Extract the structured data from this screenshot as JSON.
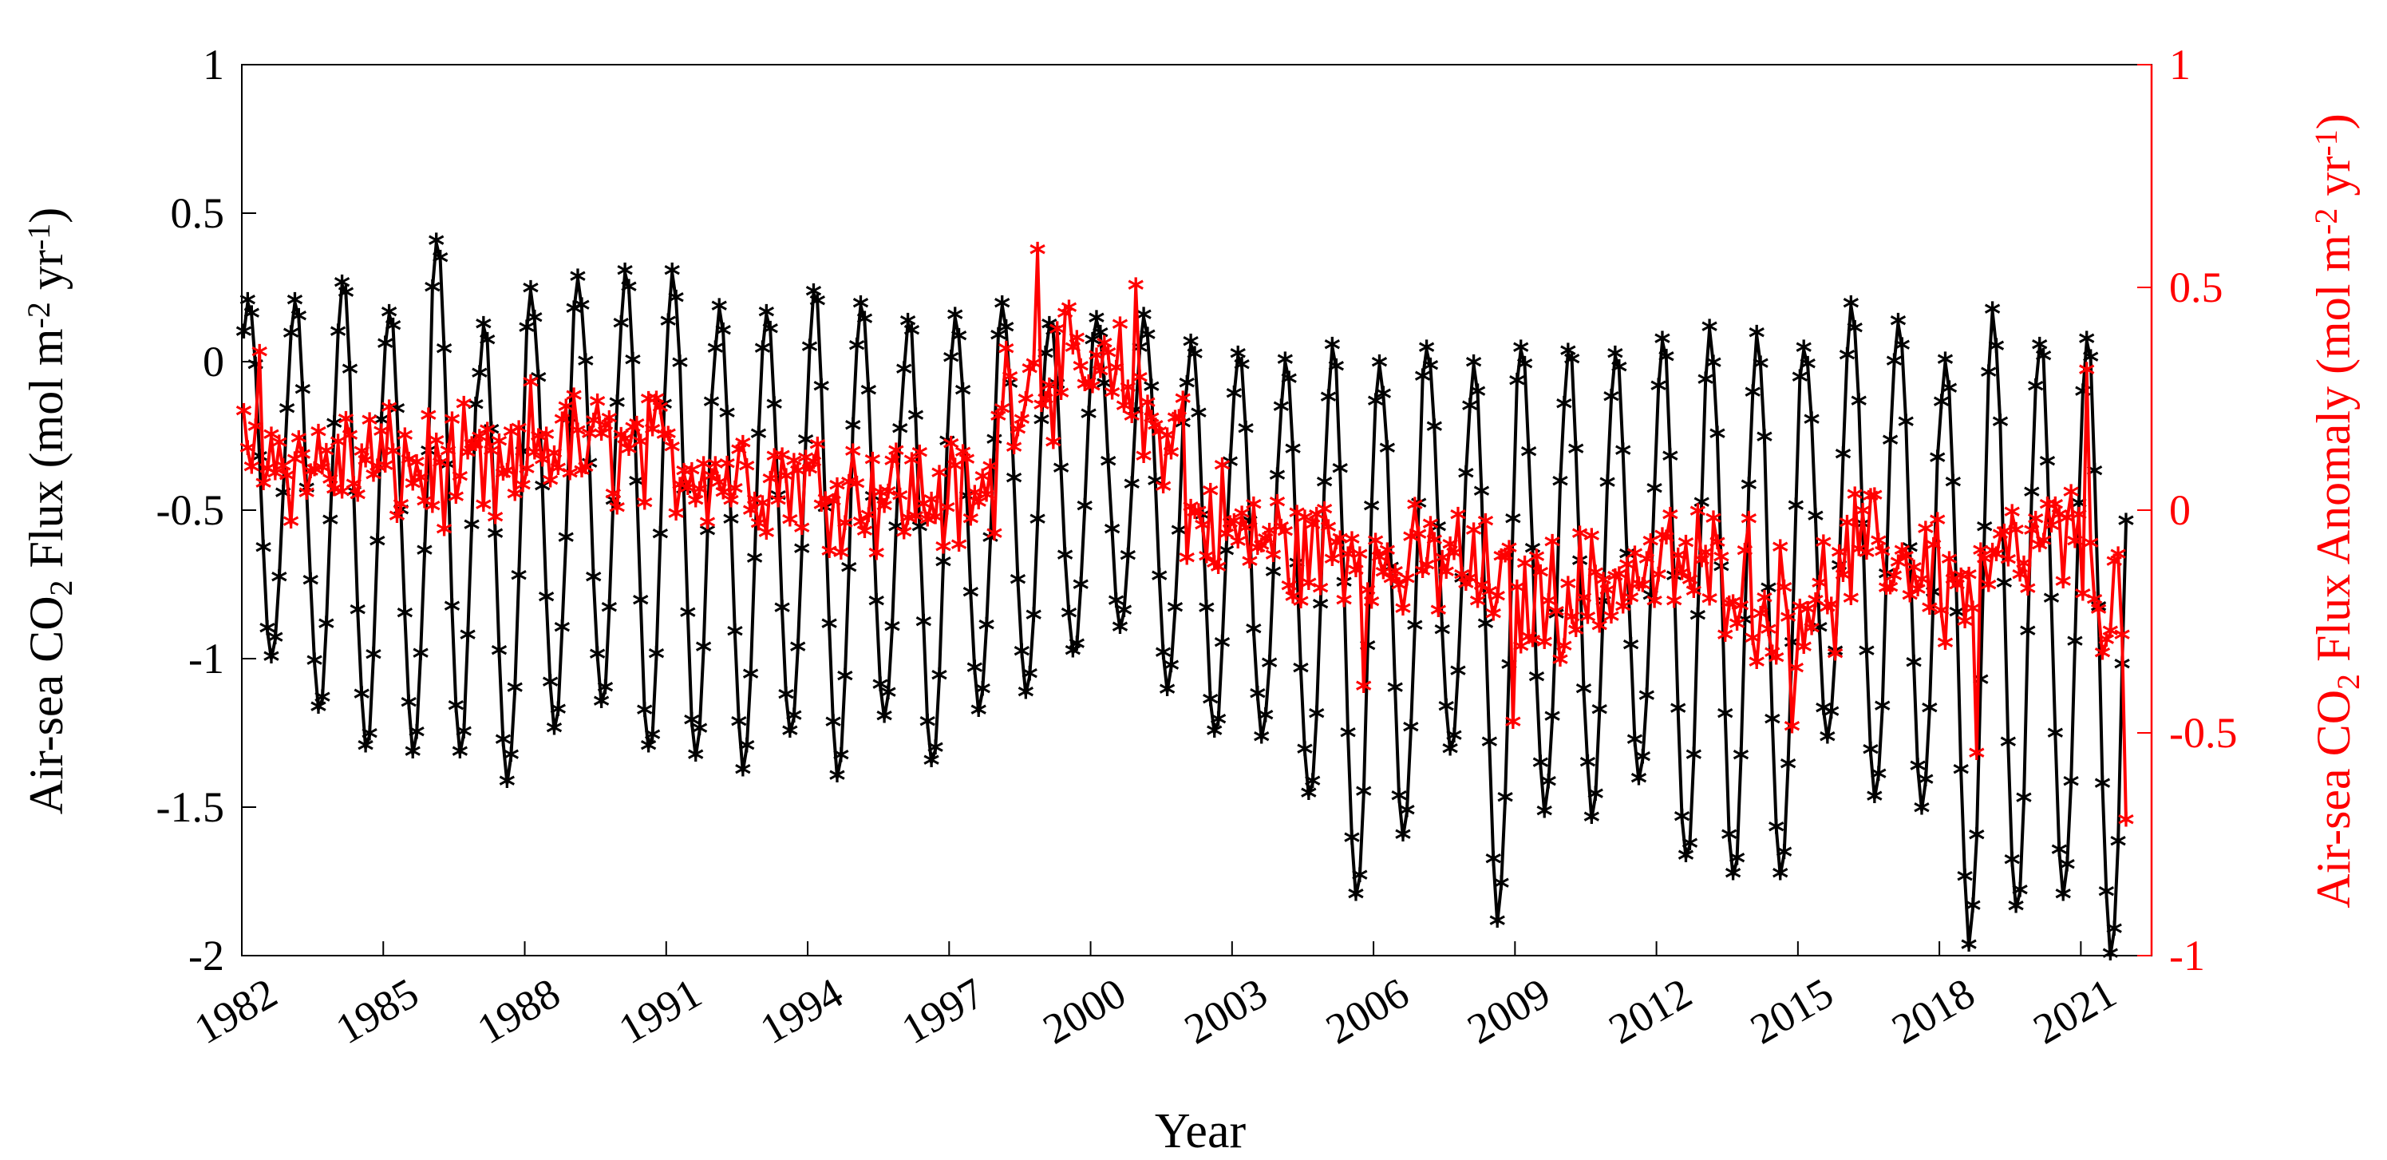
{
  "chart_data": {
    "type": "line",
    "xlabel": "Year",
    "ylabel_left": "Air-sea CO$_2$ Flux (mol m$^{-2}$ yr$^{-1}$)",
    "ylabel_right": "Air-sea CO$_2$ Flux Anomaly (mol m$^{-2}$ yr$^{-1}$)",
    "xlim": [
      1982,
      2022.5
    ],
    "ylim_left": [
      -2,
      1
    ],
    "ylim_right": [
      -1,
      1
    ],
    "xticks": [
      "1982",
      "1985",
      "1988",
      "1991",
      "1994",
      "1997",
      "2000",
      "2003",
      "2006",
      "2009",
      "2012",
      "2015",
      "2018",
      "2021"
    ],
    "yticks_left": [
      "1",
      "0.5",
      "0",
      "-0.5",
      "-1",
      "-1.5",
      "-2"
    ],
    "yticks_right": [
      "1",
      "0.5",
      "0",
      "-0.5",
      "-1"
    ],
    "grid": false,
    "marker": "*",
    "series": [
      {
        "color": "#000000",
        "axis": "left",
        "comment": "Monthly mean flux: strong seasonal cycle; per-year seasonal peaks (max) and troughs (min) read from chart",
        "annual_peaks": [
          0.2,
          0.2,
          0.26,
          0.16,
          0.4,
          0.12,
          0.24,
          0.28,
          0.3,
          0.3,
          0.18,
          0.16,
          0.23,
          0.19,
          0.13,
          0.15,
          0.19,
          0.12,
          0.14,
          0.15,
          0.06,
          0.02,
          0.0,
          0.05,
          -0.01,
          0.04,
          -0.01,
          0.04,
          0.03,
          0.02,
          0.07,
          0.11,
          0.09,
          0.04,
          0.19,
          0.13,
          0.0,
          0.17,
          0.05,
          0.07
        ],
        "annual_troughs": [
          -1.0,
          -1.17,
          -1.3,
          -1.32,
          -1.32,
          -1.42,
          -1.24,
          -1.15,
          -1.3,
          -1.33,
          -1.38,
          -1.25,
          -1.4,
          -1.2,
          -1.35,
          -1.18,
          -1.12,
          -0.98,
          -0.9,
          -1.11,
          -1.25,
          -1.27,
          -1.46,
          -1.8,
          -1.6,
          -1.31,
          -1.89,
          -1.52,
          -1.54,
          -1.41,
          -1.67,
          -1.73,
          -1.73,
          -1.27,
          -1.47,
          -1.51,
          -1.97,
          -1.84,
          -1.8,
          -2.0
        ]
      },
      {
        "color": "#ff0000",
        "axis": "right",
        "comment": "Monthly anomaly: approximate per-year mean levels read from chart",
        "annual_levels": [
          0.12,
          0.1,
          0.1,
          0.09,
          0.08,
          0.06,
          0.15,
          0.13,
          0.12,
          0.1,
          0.08,
          0.07,
          0.05,
          0.04,
          0.03,
          0.02,
          0.28,
          0.3,
          0.28,
          0.18,
          -0.03,
          -0.07,
          -0.1,
          -0.08,
          -0.14,
          -0.12,
          -0.16,
          -0.2,
          -0.18,
          -0.15,
          -0.13,
          -0.14,
          -0.22,
          -0.2,
          -0.1,
          -0.12,
          -0.18,
          -0.12,
          -0.08,
          -0.2
        ],
        "notable_points": [
          {
            "x": 1998.9,
            "y": 0.58
          },
          {
            "x": 2001.0,
            "y": 0.5
          },
          {
            "x": 1982.4,
            "y": 0.35
          },
          {
            "x": 2021.1,
            "y": 0.31
          },
          {
            "x": 2005.8,
            "y": -0.4
          },
          {
            "x": 2009.0,
            "y": -0.48
          },
          {
            "x": 2014.9,
            "y": -0.49
          },
          {
            "x": 2018.8,
            "y": -0.55
          },
          {
            "x": 2022.4,
            "y": -0.7
          }
        ]
      }
    ]
  },
  "texts": {
    "xlabel": "Year",
    "ylabel_left_main": "Air-sea CO",
    "ylabel_left_sub": "2",
    "ylabel_left_mid": " Flux (mol m",
    "ylabel_left_sup1": "-2",
    "ylabel_left_mid2": " yr",
    "ylabel_left_sup2": "-1",
    "ylabel_left_end": ")",
    "ylabel_right_main": "Air-sea CO",
    "ylabel_right_sub": "2",
    "ylabel_right_mid": " Flux Anomaly (mol m",
    "ylabel_right_sup1": "-2",
    "ylabel_right_mid2": " yr",
    "ylabel_right_sup2": "-1",
    "ylabel_right_end": ")"
  }
}
